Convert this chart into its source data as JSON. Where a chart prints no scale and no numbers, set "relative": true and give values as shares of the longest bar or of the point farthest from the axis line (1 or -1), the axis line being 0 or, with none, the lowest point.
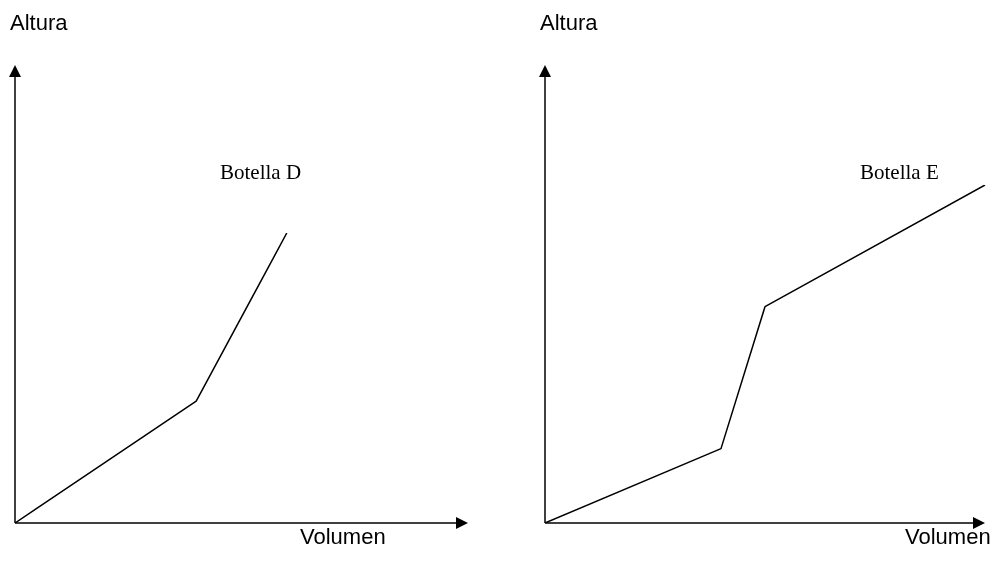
{
  "chart_data": [
    {
      "type": "line",
      "title": "Botella D",
      "xlabel": "Volumen",
      "ylabel": "Altura",
      "relative": true,
      "categories": [
        null,
        null,
        null,
        null,
        null,
        null,
        null,
        null,
        null,
        null,
        null
      ],
      "values": [
        0,
        null,
        null,
        null,
        0.42,
        null,
        1,
        null,
        null,
        null,
        null
      ],
      "color": "#000000"
    },
    {
      "type": "line",
      "title": "Botella E",
      "xlabel": "Volumen",
      "ylabel": "Altura",
      "relative": true,
      "categories": [
        null,
        null,
        null,
        null,
        null,
        null,
        null,
        null,
        null,
        null,
        null
      ],
      "values": [
        0,
        null,
        null,
        null,
        0.22,
        0.64,
        null,
        null,
        null,
        null,
        1
      ],
      "color": "#000000"
    }
  ]
}
